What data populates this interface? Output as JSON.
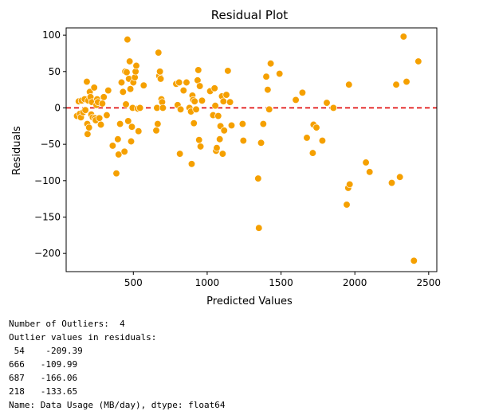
{
  "chart_data": {
    "type": "scatter",
    "title": "Residual Plot",
    "xlabel": "Predicted Values",
    "ylabel": "Residuals",
    "xlim": [
      45,
      2555
    ],
    "ylim": [
      -225,
      110
    ],
    "xticks": [
      500,
      1000,
      1500,
      2000,
      2500
    ],
    "yticks": [
      100,
      50,
      0,
      -50,
      -100,
      -150,
      -200
    ],
    "ytick_labels": [
      "100",
      "50",
      "0",
      "−50",
      "−100",
      "−150",
      "−200"
    ],
    "marker_color": "#f5a000",
    "marker_edge": "#ffffff",
    "reference_line": {
      "y": 0,
      "color": "#e00000",
      "style": "dashed"
    },
    "points": [
      [
        118,
        -11
      ],
      [
        130,
        9
      ],
      [
        138,
        -8
      ],
      [
        145,
        -13
      ],
      [
        150,
        10
      ],
      [
        160,
        -6
      ],
      [
        170,
        12
      ],
      [
        175,
        -3
      ],
      [
        185,
        36
      ],
      [
        188,
        -22
      ],
      [
        190,
        -36
      ],
      [
        195,
        10
      ],
      [
        200,
        -27
      ],
      [
        205,
        22
      ],
      [
        210,
        15
      ],
      [
        215,
        -9
      ],
      [
        220,
        8
      ],
      [
        225,
        -13
      ],
      [
        235,
        28
      ],
      [
        240,
        -14
      ],
      [
        245,
        -17
      ],
      [
        250,
        4
      ],
      [
        255,
        12
      ],
      [
        260,
        8
      ],
      [
        270,
        -14
      ],
      [
        280,
        -23
      ],
      [
        290,
        6
      ],
      [
        300,
        15
      ],
      [
        320,
        -10
      ],
      [
        330,
        24
      ],
      [
        360,
        -52
      ],
      [
        385,
        -90
      ],
      [
        395,
        -43
      ],
      [
        400,
        -64
      ],
      [
        410,
        -22
      ],
      [
        420,
        35
      ],
      [
        430,
        22
      ],
      [
        440,
        -60
      ],
      [
        445,
        50
      ],
      [
        450,
        5
      ],
      [
        455,
        49
      ],
      [
        460,
        94
      ],
      [
        465,
        -18
      ],
      [
        470,
        40
      ],
      [
        475,
        64
      ],
      [
        480,
        26
      ],
      [
        485,
        -46
      ],
      [
        490,
        -26
      ],
      [
        495,
        0
      ],
      [
        500,
        35
      ],
      [
        510,
        42
      ],
      [
        515,
        50
      ],
      [
        520,
        58
      ],
      [
        530,
        -1
      ],
      [
        535,
        -32
      ],
      [
        545,
        0
      ],
      [
        570,
        31
      ],
      [
        655,
        -31
      ],
      [
        660,
        0
      ],
      [
        665,
        -22
      ],
      [
        670,
        76
      ],
      [
        675,
        44
      ],
      [
        680,
        50
      ],
      [
        685,
        40
      ],
      [
        690,
        12
      ],
      [
        695,
        8
      ],
      [
        700,
        0
      ],
      [
        790,
        33
      ],
      [
        800,
        4
      ],
      [
        810,
        35
      ],
      [
        815,
        -63
      ],
      [
        820,
        -2
      ],
      [
        840,
        24
      ],
      [
        860,
        35
      ],
      [
        880,
        0
      ],
      [
        890,
        -5
      ],
      [
        895,
        -77
      ],
      [
        900,
        17
      ],
      [
        905,
        11
      ],
      [
        910,
        -21
      ],
      [
        915,
        9
      ],
      [
        925,
        -2
      ],
      [
        935,
        38
      ],
      [
        940,
        52
      ],
      [
        945,
        -44
      ],
      [
        950,
        30
      ],
      [
        955,
        -53
      ],
      [
        965,
        10
      ],
      [
        1020,
        23
      ],
      [
        1040,
        -10
      ],
      [
        1050,
        27
      ],
      [
        1055,
        3
      ],
      [
        1060,
        -59
      ],
      [
        1065,
        -55
      ],
      [
        1075,
        -11
      ],
      [
        1085,
        -43
      ],
      [
        1090,
        -25
      ],
      [
        1100,
        16
      ],
      [
        1105,
        -63
      ],
      [
        1110,
        9
      ],
      [
        1115,
        -31
      ],
      [
        1130,
        18
      ],
      [
        1140,
        51
      ],
      [
        1155,
        8
      ],
      [
        1165,
        -24
      ],
      [
        1240,
        -22
      ],
      [
        1245,
        -45
      ],
      [
        1345,
        -97
      ],
      [
        1350,
        -165
      ],
      [
        1365,
        -48
      ],
      [
        1380,
        -22
      ],
      [
        1400,
        43
      ],
      [
        1410,
        25
      ],
      [
        1420,
        -2
      ],
      [
        1430,
        61
      ],
      [
        1490,
        47
      ],
      [
        1600,
        11
      ],
      [
        1645,
        21
      ],
      [
        1675,
        -41
      ],
      [
        1715,
        -62
      ],
      [
        1720,
        -23
      ],
      [
        1740,
        -27
      ],
      [
        1780,
        -45
      ],
      [
        1810,
        7
      ],
      [
        1855,
        0
      ],
      [
        1945,
        -133
      ],
      [
        1955,
        -110
      ],
      [
        1960,
        32
      ],
      [
        1965,
        -105
      ],
      [
        2075,
        -75
      ],
      [
        2100,
        -88
      ],
      [
        2250,
        -103
      ],
      [
        2280,
        32
      ],
      [
        2305,
        -95
      ],
      [
        2330,
        98
      ],
      [
        2350,
        36
      ],
      [
        2400,
        -210
      ],
      [
        2430,
        64
      ]
    ]
  },
  "console": {
    "lines": [
      "Number of Outliers:  4",
      "Outlier values in residuals:",
      " 54    -209.39",
      "666   -109.99",
      "687   -166.06",
      "218   -133.65",
      "Name: Data Usage (MB/day), dtype: float64"
    ]
  }
}
